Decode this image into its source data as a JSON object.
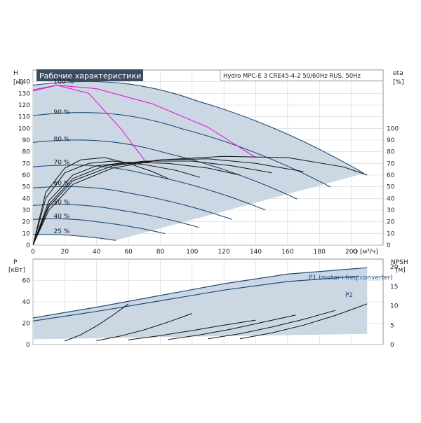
{
  "chart_data": [
    {
      "type": "line",
      "panel": "head",
      "title": "Рабочие характеристики",
      "subtitle": "Hydro MPC-E 3 CRE45-4-2 50/60Hz RUS, 50Hz",
      "xlabel": "Q [м³/ч]",
      "ylabel": "H",
      "ylabel_unit": "[м]",
      "y2label": "eta",
      "y2label_unit": "[%]",
      "xlim": [
        0,
        220
      ],
      "ylim": [
        0,
        150
      ],
      "y2lim": [
        0,
        150
      ],
      "x_ticks": [
        "0",
        "20",
        "40",
        "60",
        "80",
        "100",
        "120",
        "140",
        "160",
        "180",
        "200"
      ],
      "y_ticks": [
        "0",
        "10",
        "20",
        "30",
        "40",
        "50",
        "60",
        "70",
        "80",
        "90",
        "100",
        "110",
        "120",
        "130",
        "140"
      ],
      "y2_ticks": [
        "0",
        "10",
        "20",
        "30",
        "40",
        "50",
        "60",
        "70",
        "80",
        "90",
        "100"
      ],
      "grid": true,
      "speed_labels": [
        {
          "text": "100 %",
          "q": 13,
          "h": 140
        },
        {
          "text": "90 %",
          "q": 13,
          "h": 114
        },
        {
          "text": "80 %",
          "q": 13,
          "h": 91
        },
        {
          "text": "70 %",
          "q": 13,
          "h": 71
        },
        {
          "text": "60 %",
          "q": 13,
          "h": 53
        },
        {
          "text": "50 %",
          "q": 13,
          "h": 37
        },
        {
          "text": "40 %",
          "q": 13,
          "h": 25
        },
        {
          "text": "25 %",
          "q": 13,
          "h": 12
        }
      ],
      "head_curves": [
        {
          "speed": "100 %",
          "shut_off_head": 137,
          "max_q": 208
        },
        {
          "speed": "90 %",
          "shut_off_head": 111,
          "max_q": 187
        },
        {
          "speed": "80 %",
          "shut_off_head": 88,
          "max_q": 166
        },
        {
          "speed": "70 %",
          "shut_off_head": 67,
          "max_q": 146
        },
        {
          "speed": "60 %",
          "shut_off_head": 49,
          "max_q": 125
        },
        {
          "speed": "50 %",
          "shut_off_head": 34,
          "max_q": 104
        },
        {
          "speed": "40 %",
          "shut_off_head": 22,
          "max_q": 83
        },
        {
          "speed": "25 %",
          "shut_off_head": 9,
          "max_q": 52
        }
      ],
      "best_efficiency_curves": [
        {
          "q": [
            0,
            15,
            35,
            55,
            70
          ],
          "h": [
            132,
            137,
            130,
            100,
            73
          ]
        },
        {
          "q": [
            0,
            15,
            40,
            75,
            110,
            140
          ],
          "h": [
            133,
            137,
            134,
            121,
            101,
            75
          ]
        }
      ],
      "efficiency_curves": [
        {
          "q": [
            0,
            10,
            25,
            50,
            80,
            120,
            160,
            195,
            210
          ],
          "eta": [
            0,
            30,
            52,
            66,
            73,
            76,
            75,
            67,
            60
          ]
        },
        {
          "q": [
            0,
            10,
            25,
            50,
            80,
            110,
            140,
            170
          ],
          "eta": [
            0,
            33,
            55,
            68,
            73,
            74,
            70,
            63
          ]
        },
        {
          "q": [
            0,
            10,
            25,
            45,
            70,
            100,
            125,
            150
          ],
          "eta": [
            0,
            35,
            57,
            68,
            72,
            72,
            68,
            62
          ]
        },
        {
          "q": [
            0,
            10,
            25,
            40,
            60,
            85,
            110,
            130
          ],
          "eta": [
            0,
            38,
            60,
            68,
            71,
            70,
            66,
            60
          ]
        },
        {
          "q": [
            0,
            8,
            20,
            35,
            50,
            70,
            90,
            105
          ],
          "eta": [
            0,
            40,
            62,
            70,
            72,
            69,
            64,
            58
          ]
        },
        {
          "q": [
            0,
            8,
            20,
            30,
            45,
            60,
            75,
            85
          ],
          "eta": [
            0,
            45,
            66,
            73,
            75,
            70,
            63,
            57
          ]
        }
      ]
    },
    {
      "type": "line",
      "panel": "power",
      "ylabel": "P",
      "ylabel_unit": "[кВт]",
      "y2label": "NPSH",
      "y2label_unit": "[м]",
      "xlim": [
        0,
        220
      ],
      "ylim": [
        0,
        80
      ],
      "y2lim": [
        0,
        22
      ],
      "y_ticks": [
        "0",
        "20",
        "40",
        "60"
      ],
      "y2_ticks": [
        "0",
        "5",
        "10",
        "15",
        "20"
      ],
      "grid": true,
      "series": [
        {
          "name": "P1 (motor+freq.converter)",
          "q": [
            0,
            40,
            80,
            120,
            160,
            210
          ],
          "p": [
            25,
            35,
            46,
            57,
            66,
            72
          ]
        },
        {
          "name": "P2",
          "q": [
            0,
            40,
            80,
            120,
            160,
            205
          ],
          "p": [
            22,
            31,
            41,
            51,
            59,
            64
          ]
        }
      ],
      "npsh_curves": [
        {
          "q": [
            130,
            150,
            170,
            190,
            210
          ],
          "npsh": [
            1.5,
            3,
            5,
            7.5,
            10.5
          ]
        },
        {
          "q": [
            110,
            130,
            150,
            170,
            190
          ],
          "npsh": [
            1.5,
            2.8,
            4.5,
            6.5,
            8.8
          ]
        },
        {
          "q": [
            85,
            105,
            125,
            145,
            165
          ],
          "npsh": [
            1.3,
            2.5,
            4,
            5.8,
            7.6
          ]
        },
        {
          "q": [
            60,
            80,
            100,
            120,
            140
          ],
          "npsh": [
            1.2,
            2.3,
            3.6,
            5,
            6.3
          ]
        },
        {
          "q": [
            40,
            55,
            70,
            85,
            100
          ],
          "npsh": [
            1.0,
            2.2,
            3.8,
            5.8,
            8
          ]
        },
        {
          "q": [
            20,
            30,
            40,
            50,
            60
          ],
          "npsh": [
            0.9,
            2.5,
            4.8,
            7.5,
            10.5
          ]
        }
      ]
    }
  ],
  "colors": {
    "band": "#cbd8e4",
    "head_line": "#1f4b78",
    "efficiency_line": "#111111",
    "bep_line": "#e61ad6",
    "grid": "#d4d4d4",
    "title_box": "#3a4d60"
  }
}
